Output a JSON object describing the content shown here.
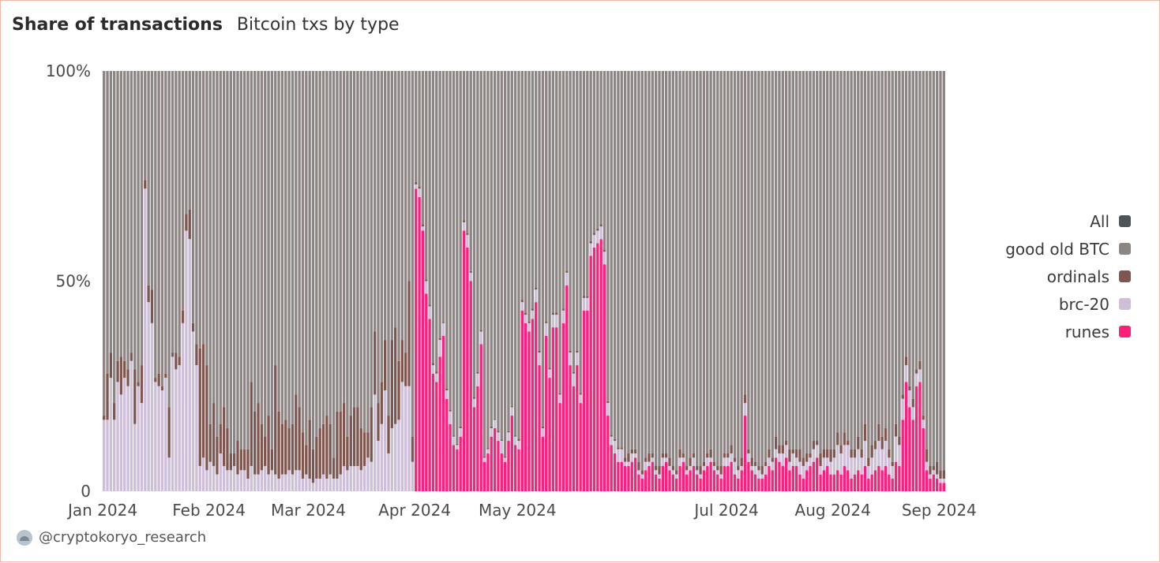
{
  "header": {
    "title": "Share of transactions",
    "subtitle": "Bitcoin txs by type"
  },
  "footer": {
    "handle": "@cryptokoryo_research",
    "icon": "avatar-icon"
  },
  "colors": {
    "all": "#4e5559",
    "good_old_btc": "#8c8584",
    "ordinals": "#7d5650",
    "brc20": "#cdbfd8",
    "runes": "#ff1f7a"
  },
  "legend": [
    {
      "label": "All",
      "key": "all"
    },
    {
      "label": "good old BTC",
      "key": "good_old_btc"
    },
    {
      "label": "ordinals",
      "key": "ordinals"
    },
    {
      "label": "brc-20",
      "key": "brc20"
    },
    {
      "label": "runes",
      "key": "runes"
    }
  ],
  "chart_data": {
    "type": "bar",
    "stacked": true,
    "granularity": "daily",
    "ylim": [
      0,
      100
    ],
    "y_ticks": [
      {
        "value": 0,
        "label": "0"
      },
      {
        "value": 50,
        "label": "50%"
      },
      {
        "value": 100,
        "label": "100%"
      }
    ],
    "x_ticks": [
      {
        "date": "2024-01-01",
        "label": "Jan 2024"
      },
      {
        "date": "2024-02-01",
        "label": "Feb 2024"
      },
      {
        "date": "2024-03-01",
        "label": "Mar 2024"
      },
      {
        "date": "2024-04-01",
        "label": "Apr 2024"
      },
      {
        "date": "2024-05-01",
        "label": "May 2024"
      },
      {
        "date": "2024-07-01",
        "label": "Jul 2024"
      },
      {
        "date": "2024-08-01",
        "label": "Aug 2024"
      },
      {
        "date": "2024-09-01",
        "label": "Sep 2024"
      }
    ],
    "legend_position": "right",
    "grid": false,
    "series_order": [
      "runes",
      "brc20",
      "ordinals",
      "good_old_btc"
    ],
    "segments": [
      {
        "from": "2024-01-01",
        "to": "2024-01-13",
        "runes": 0,
        "brc20": [
          17,
          17,
          27,
          17,
          26,
          23,
          27,
          25,
          31,
          16,
          25,
          21
        ],
        "ordinals": [
          1,
          11,
          6,
          4,
          5,
          9,
          4,
          4,
          2,
          13,
          1,
          9
        ]
      },
      {
        "from": "2024-01-13",
        "to": "2024-02-01",
        "runes": 0,
        "brc20": [
          72,
          45,
          40,
          26,
          25,
          24,
          27,
          8,
          32,
          29,
          30,
          40,
          62,
          60,
          38,
          30,
          6,
          8,
          5
        ],
        "ordinals": [
          2,
          4,
          8,
          1,
          3,
          1,
          1,
          12,
          1,
          4,
          2,
          3,
          4,
          7,
          2,
          5,
          28,
          27,
          25
        ]
      },
      {
        "from": "2024-02-01",
        "to": "2024-03-01",
        "runes": 0,
        "brc20": [
          7,
          6,
          4,
          9,
          6,
          5,
          5,
          6,
          4,
          5,
          5,
          3,
          6,
          4,
          4,
          5,
          6,
          4,
          5,
          4,
          3,
          4,
          4,
          5,
          4,
          5,
          5,
          3,
          4
        ],
        "ordinals": [
          9,
          15,
          9,
          7,
          14,
          10,
          4,
          3,
          8,
          5,
          5,
          7,
          20,
          15,
          17,
          11,
          7,
          14,
          5,
          26,
          16,
          12,
          13,
          10,
          12,
          18,
          15,
          11,
          7
        ]
      },
      {
        "from": "2024-03-01",
        "to": "2024-04-01",
        "runes": 0,
        "brc20": [
          3,
          2,
          3,
          3,
          4,
          3,
          4,
          3,
          3,
          4,
          6,
          5,
          6,
          6,
          6,
          5,
          6,
          8,
          7,
          23,
          12,
          16,
          24,
          9,
          15,
          16,
          17,
          26,
          25,
          25,
          7
        ],
        "ordinals": [
          14,
          8,
          10,
          12,
          12,
          15,
          12,
          5,
          16,
          15,
          15,
          8,
          12,
          14,
          14,
          10,
          8,
          6,
          13,
          15,
          9,
          10,
          12,
          9,
          21,
          23,
          14,
          10,
          8,
          25,
          6
        ]
      },
      {
        "from": "2024-04-01",
        "to": "2024-05-01",
        "runes": [
          72,
          70,
          62,
          47,
          41,
          28,
          26,
          32,
          37,
          22,
          16,
          11,
          10,
          13,
          62,
          58,
          50,
          20,
          25,
          35,
          7,
          9,
          13,
          15,
          12,
          9,
          7,
          12,
          18,
          11
        ],
        "brc20": [
          1,
          2,
          1,
          3,
          3,
          2,
          2,
          4,
          3,
          2,
          3,
          2,
          1,
          2,
          2,
          3,
          2,
          2,
          3,
          3,
          1,
          1,
          2,
          2,
          2,
          3,
          1,
          2,
          2,
          2
        ],
        "ordinals": [
          0.6,
          0.5,
          0.5,
          0.4,
          0.4,
          0.5,
          0.5,
          0.4,
          0.3,
          0.4,
          0.4,
          0.3,
          0.3,
          0.4,
          0.5,
          0.4,
          0.4,
          0.4,
          0.4,
          0.4,
          0.3,
          0.3,
          0.4,
          0.3,
          0.4,
          0.3,
          0.3,
          0.3,
          0.3,
          0.3
        ]
      },
      {
        "from": "2024-05-01",
        "to": "2024-06-01",
        "runes": [
          10,
          43,
          40,
          38,
          41,
          45,
          30,
          13,
          37,
          27,
          39,
          39,
          21,
          40,
          49,
          30,
          25,
          30,
          21,
          43,
          43,
          56,
          58,
          59,
          60,
          54,
          18,
          11,
          9,
          7,
          7
        ],
        "brc20": [
          2,
          2,
          2,
          2,
          2,
          3,
          3,
          2,
          3,
          2,
          3,
          3,
          2,
          3,
          3,
          3,
          3,
          3,
          2,
          3,
          3,
          3,
          3,
          3,
          3,
          3,
          3,
          2,
          3,
          3,
          3
        ],
        "ordinals": [
          0.5,
          0.5,
          0.4,
          0.4,
          0.5,
          0.4,
          0.4,
          0.4,
          0.4,
          0.4,
          0.4,
          0.5,
          0.4,
          0.5,
          0.5,
          0.4,
          0.4,
          0.4,
          0.4,
          0.5,
          0.4,
          0.5,
          0.5,
          0.5,
          0.5,
          0.4,
          0.4,
          0.4,
          0.4,
          0.4,
          0.4
        ]
      },
      {
        "from": "2024-06-01",
        "to": "2024-07-01",
        "runes": [
          6,
          6,
          7,
          8,
          4,
          3,
          5,
          6,
          7,
          4,
          3,
          6,
          7,
          5,
          4,
          3,
          6,
          7,
          4,
          5,
          6,
          4,
          3,
          5,
          6,
          7,
          5,
          4,
          3,
          6
        ],
        "brc20": [
          1,
          1,
          2,
          1,
          1,
          1,
          2,
          1,
          1,
          1,
          1,
          2,
          1,
          1,
          1,
          1,
          2,
          1,
          1,
          1,
          2,
          1,
          1,
          1,
          2,
          1,
          1,
          1,
          1,
          2
        ],
        "ordinals": [
          1,
          2,
          1,
          1,
          2,
          1,
          1,
          2,
          1,
          1,
          2,
          1,
          1,
          2,
          1,
          1,
          2,
          1,
          1,
          2,
          1,
          1,
          2,
          1,
          1,
          2,
          1,
          1,
          2,
          1
        ]
      },
      {
        "from": "2024-07-01",
        "to": "2024-08-01",
        "runes": [
          6,
          7,
          4,
          3,
          5,
          18,
          7,
          5,
          4,
          3,
          3,
          4,
          6,
          5,
          8,
          7,
          6,
          8,
          5,
          6,
          6,
          4,
          3,
          5,
          6,
          7,
          8,
          4,
          5,
          6,
          4
        ],
        "brc20": [
          2,
          2,
          3,
          2,
          1,
          3,
          2,
          1,
          2,
          2,
          1,
          2,
          2,
          2,
          2,
          2,
          3,
          3,
          2,
          3,
          2,
          3,
          3,
          2,
          2,
          3,
          3,
          2,
          3,
          2,
          3
        ],
        "ordinals": [
          1,
          2,
          1,
          1,
          2,
          2,
          1,
          2,
          1,
          1,
          2,
          1,
          2,
          1,
          3,
          2,
          2,
          1,
          3,
          1,
          2,
          3,
          2,
          2,
          1,
          2,
          1,
          3,
          2,
          2,
          3
        ]
      },
      {
        "from": "2024-08-01",
        "to": "2024-09-01",
        "runes": [
          4,
          5,
          4,
          6,
          5,
          3,
          4,
          5,
          4,
          6,
          3,
          4,
          5,
          6,
          5,
          6,
          4,
          3,
          7,
          6,
          17,
          26,
          20,
          17,
          25,
          26,
          15,
          5,
          3,
          4,
          3
        ],
        "brc20": [
          4,
          6,
          5,
          5,
          6,
          5,
          4,
          5,
          4,
          6,
          3,
          4,
          5,
          6,
          5,
          6,
          4,
          3,
          6,
          5,
          5,
          4,
          4,
          3,
          3,
          3,
          2,
          2,
          1,
          1,
          1
        ],
        "ordinals": [
          2,
          3,
          2,
          3,
          1,
          2,
          2,
          3,
          2,
          4,
          2,
          3,
          2,
          4,
          3,
          3,
          2,
          1,
          3,
          2,
          1,
          2,
          1,
          2,
          1,
          2,
          1,
          3,
          2,
          1,
          3
        ]
      },
      {
        "from": "2024-09-01",
        "to": "2024-09-03",
        "runes": [
          2
        ],
        "brc20": [
          1
        ],
        "ordinals": [
          2
        ]
      }
    ]
  }
}
